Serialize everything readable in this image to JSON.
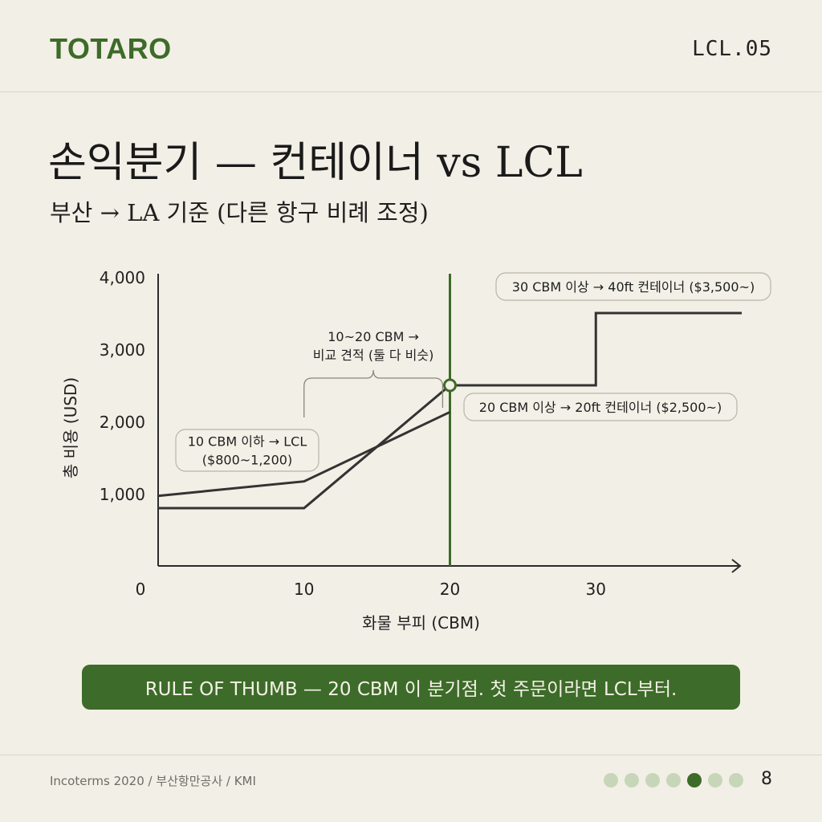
{
  "header": {
    "brand": "TOTARO",
    "code": "LCL.05"
  },
  "title": "손익분기 — 컨테이너 vs LCL",
  "subtitle": "부산 → LA 기준 (다른 항구 비례 조정)",
  "chart_data": {
    "type": "line",
    "xlabel": "화물 부피 (CBM)",
    "ylabel": "총 비용 (USD)",
    "xlim": [
      0,
      40
    ],
    "ylim": [
      0,
      4000
    ],
    "x_ticks": [
      "0",
      "10",
      "20",
      "30"
    ],
    "y_ticks": [
      "1,000",
      "2,000",
      "3,000",
      "4,000"
    ],
    "grid": false,
    "series": [
      {
        "points": [
          [
            0,
            800
          ],
          [
            10,
            800
          ],
          [
            20,
            2500
          ],
          [
            30,
            2500
          ],
          [
            30,
            3500
          ],
          [
            40,
            3500
          ]
        ]
      },
      {
        "points": [
          [
            0,
            970
          ],
          [
            10,
            1170
          ],
          [
            20,
            2130
          ]
        ]
      }
    ],
    "breakeven": {
      "x": 20,
      "y": 2500
    },
    "annotations": {
      "lcl_line1": "10 CBM 이하 → LCL",
      "lcl_line2": "($800~1,200)",
      "compare_line1": "10~20 CBM →",
      "compare_line2": "비교 견적 (둘 다 비슷)",
      "container20": "20 CBM 이상 → 20ft 컨테이너 ($2,500~)",
      "container40": "30 CBM 이상 → 40ft 컨테이너 ($3,500~)"
    }
  },
  "banner": "RULE OF THUMB — 20 CBM 이 분기점. 첫 주문이라면 LCL부터.",
  "footer": {
    "sources": "Incoterms 2020 / 부산항만공사 / KMI",
    "page_dots": 7,
    "active_dot": 5,
    "page_number": "8"
  },
  "colors": {
    "accent": "#3d6b29",
    "line": "#333333",
    "background": "#f2efe6"
  }
}
